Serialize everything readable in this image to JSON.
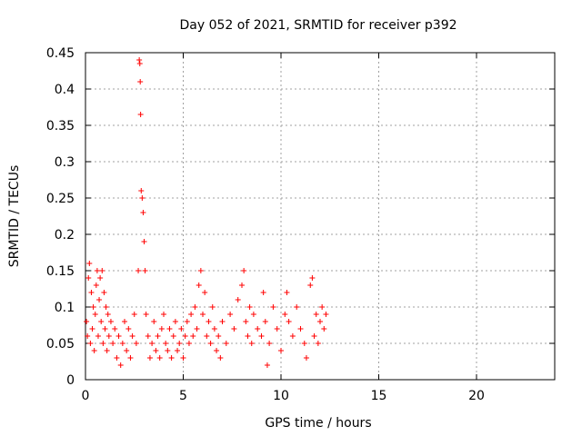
{
  "chart_data": {
    "type": "scatter",
    "title": "Day 052 of 2021, SRMTID for receiver p392",
    "xlabel": "GPS time / hours",
    "ylabel": "SRMTID / TECUs",
    "xlim": [
      0,
      24
    ],
    "ylim": [
      0,
      0.45
    ],
    "xticks": [
      0,
      5,
      10,
      15,
      20
    ],
    "xtick_labels": [
      "0",
      "5",
      "10",
      "15",
      "20"
    ],
    "yticks": [
      0,
      0.05,
      0.1,
      0.15,
      0.2,
      0.25,
      0.3,
      0.35,
      0.4,
      0.45
    ],
    "ytick_labels": [
      "0",
      "0.05",
      "0.1",
      "0.15",
      "0.2",
      "0.25",
      "0.3",
      "0.35",
      "0.4",
      "0.45"
    ],
    "grid": true,
    "marker": "+",
    "color": "#ff0000",
    "series": [
      {
        "name": "SRMTID",
        "points": [
          [
            0.05,
            0.08
          ],
          [
            0.1,
            0.06
          ],
          [
            0.15,
            0.14
          ],
          [
            0.2,
            0.16
          ],
          [
            0.25,
            0.05
          ],
          [
            0.3,
            0.12
          ],
          [
            0.35,
            0.07
          ],
          [
            0.4,
            0.1
          ],
          [
            0.45,
            0.04
          ],
          [
            0.5,
            0.09
          ],
          [
            0.55,
            0.13
          ],
          [
            0.6,
            0.15
          ],
          [
            0.65,
            0.06
          ],
          [
            0.7,
            0.11
          ],
          [
            0.75,
            0.14
          ],
          [
            0.8,
            0.08
          ],
          [
            0.85,
            0.15
          ],
          [
            0.9,
            0.05
          ],
          [
            0.95,
            0.12
          ],
          [
            1.0,
            0.07
          ],
          [
            1.05,
            0.1
          ],
          [
            1.1,
            0.04
          ],
          [
            1.15,
            0.09
          ],
          [
            1.2,
            0.06
          ],
          [
            1.3,
            0.08
          ],
          [
            1.4,
            0.05
          ],
          [
            1.5,
            0.07
          ],
          [
            1.6,
            0.03
          ],
          [
            1.7,
            0.06
          ],
          [
            1.8,
            0.02
          ],
          [
            1.9,
            0.05
          ],
          [
            2.0,
            0.08
          ],
          [
            2.1,
            0.04
          ],
          [
            2.2,
            0.07
          ],
          [
            2.3,
            0.03
          ],
          [
            2.4,
            0.06
          ],
          [
            2.5,
            0.09
          ],
          [
            2.6,
            0.05
          ],
          [
            2.7,
            0.15
          ],
          [
            2.75,
            0.44
          ],
          [
            2.78,
            0.435
          ],
          [
            2.8,
            0.41
          ],
          [
            2.82,
            0.365
          ],
          [
            2.85,
            0.26
          ],
          [
            2.9,
            0.25
          ],
          [
            2.95,
            0.23
          ],
          [
            3.0,
            0.19
          ],
          [
            3.05,
            0.15
          ],
          [
            3.1,
            0.09
          ],
          [
            3.2,
            0.06
          ],
          [
            3.3,
            0.03
          ],
          [
            3.4,
            0.05
          ],
          [
            3.5,
            0.08
          ],
          [
            3.6,
            0.04
          ],
          [
            3.7,
            0.06
          ],
          [
            3.8,
            0.03
          ],
          [
            3.9,
            0.07
          ],
          [
            4.0,
            0.09
          ],
          [
            4.1,
            0.05
          ],
          [
            4.2,
            0.04
          ],
          [
            4.3,
            0.07
          ],
          [
            4.4,
            0.03
          ],
          [
            4.5,
            0.06
          ],
          [
            4.6,
            0.08
          ],
          [
            4.7,
            0.04
          ],
          [
            4.8,
            0.05
          ],
          [
            4.9,
            0.07
          ],
          [
            5.0,
            0.03
          ],
          [
            5.1,
            0.06
          ],
          [
            5.2,
            0.08
          ],
          [
            5.3,
            0.05
          ],
          [
            5.4,
            0.09
          ],
          [
            5.5,
            0.06
          ],
          [
            5.6,
            0.1
          ],
          [
            5.7,
            0.07
          ],
          [
            5.8,
            0.13
          ],
          [
            5.9,
            0.15
          ],
          [
            6.0,
            0.09
          ],
          [
            6.1,
            0.12
          ],
          [
            6.2,
            0.06
          ],
          [
            6.3,
            0.08
          ],
          [
            6.4,
            0.05
          ],
          [
            6.5,
            0.1
          ],
          [
            6.6,
            0.07
          ],
          [
            6.7,
            0.04
          ],
          [
            6.8,
            0.06
          ],
          [
            6.9,
            0.03
          ],
          [
            7.0,
            0.08
          ],
          [
            7.2,
            0.05
          ],
          [
            7.4,
            0.09
          ],
          [
            7.6,
            0.07
          ],
          [
            7.8,
            0.11
          ],
          [
            8.0,
            0.13
          ],
          [
            8.1,
            0.15
          ],
          [
            8.2,
            0.08
          ],
          [
            8.3,
            0.06
          ],
          [
            8.4,
            0.1
          ],
          [
            8.5,
            0.05
          ],
          [
            8.6,
            0.09
          ],
          [
            8.8,
            0.07
          ],
          [
            9.0,
            0.06
          ],
          [
            9.1,
            0.12
          ],
          [
            9.2,
            0.08
          ],
          [
            9.3,
            0.02
          ],
          [
            9.4,
            0.05
          ],
          [
            9.6,
            0.1
          ],
          [
            9.8,
            0.07
          ],
          [
            10.0,
            0.04
          ],
          [
            10.2,
            0.09
          ],
          [
            10.3,
            0.12
          ],
          [
            10.4,
            0.08
          ],
          [
            10.6,
            0.06
          ],
          [
            10.8,
            0.1
          ],
          [
            11.0,
            0.07
          ],
          [
            11.2,
            0.05
          ],
          [
            11.3,
            0.03
          ],
          [
            11.5,
            0.13
          ],
          [
            11.6,
            0.14
          ],
          [
            11.7,
            0.06
          ],
          [
            11.8,
            0.09
          ],
          [
            11.9,
            0.05
          ],
          [
            12.0,
            0.08
          ],
          [
            12.1,
            0.1
          ],
          [
            12.2,
            0.07
          ],
          [
            12.3,
            0.09
          ]
        ]
      }
    ]
  }
}
